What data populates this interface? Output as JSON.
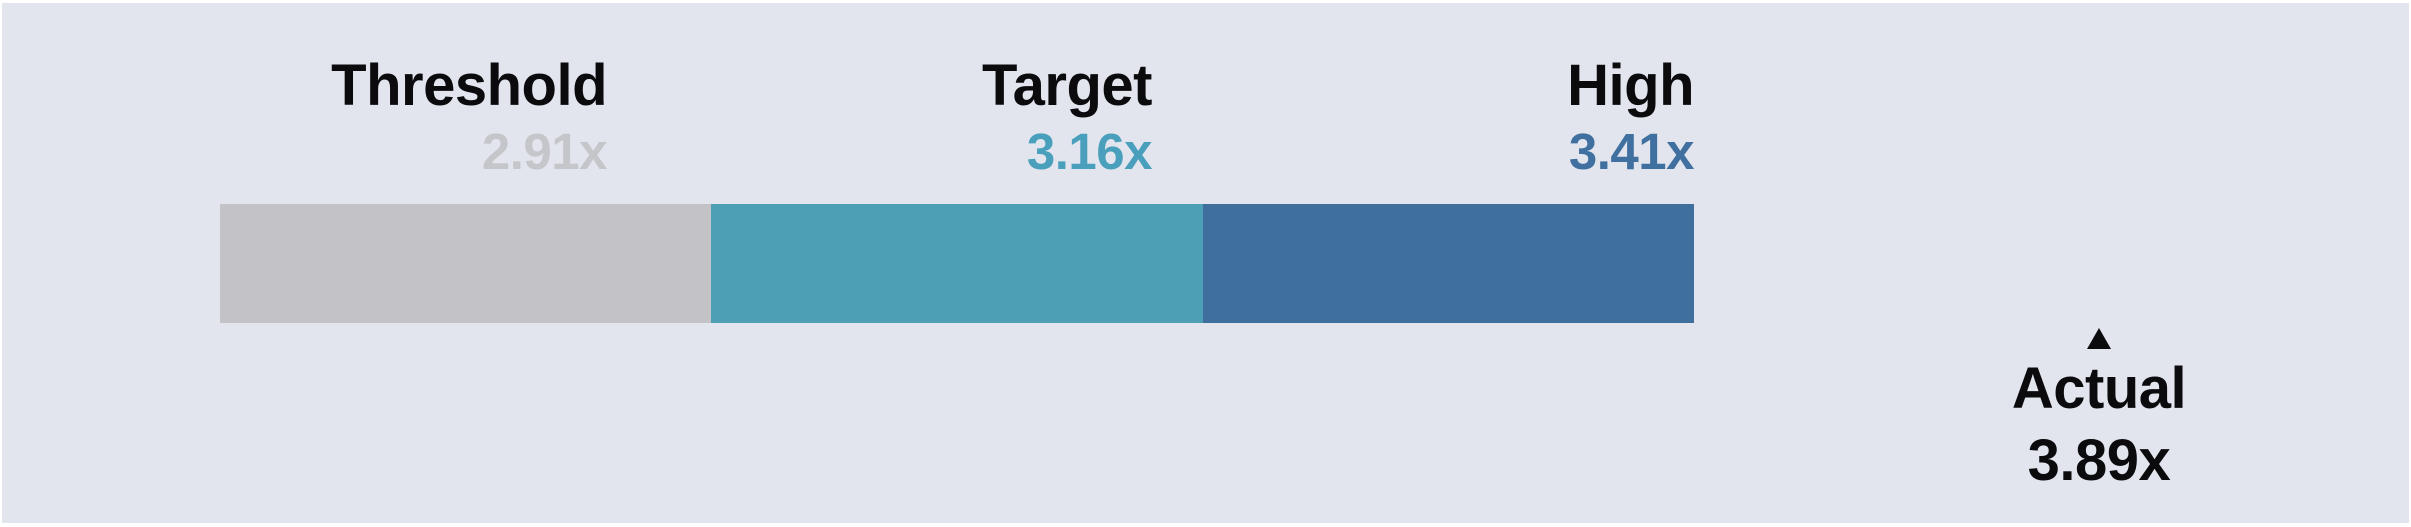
{
  "canvas": {
    "background_color": "#e2e5ee",
    "frame_color": "#ffffff",
    "text_color": "#0b0b0d"
  },
  "chart_data": {
    "type": "bar",
    "subtype": "bullet-scale",
    "orientation": "horizontal",
    "title": "",
    "unit_suffix": "x",
    "grid": false,
    "legend_position": "none",
    "categories": [
      "Threshold",
      "Target",
      "High"
    ],
    "values": [
      2.91,
      3.16,
      3.41
    ],
    "segments": [
      {
        "label": "Threshold",
        "value_label": "2.91x",
        "value": 2.91,
        "bar_color": "#c3c3c7",
        "value_text_color": "#c5c6ca"
      },
      {
        "label": "Target",
        "value_label": "3.16x",
        "value": 3.16,
        "bar_color": "#4d9fb5",
        "value_text_color": "#4aa0bc"
      },
      {
        "label": "High",
        "value_label": "3.41x",
        "value": 3.41,
        "bar_color": "#3f6f9c",
        "value_text_color": "#40709f"
      }
    ],
    "marker": {
      "label": "Actual",
      "value_label": "3.89x",
      "value": 3.89,
      "symbol": "triangle-up",
      "color": "#0b0b0d",
      "position": "beyond-right-end-of-bar"
    }
  }
}
